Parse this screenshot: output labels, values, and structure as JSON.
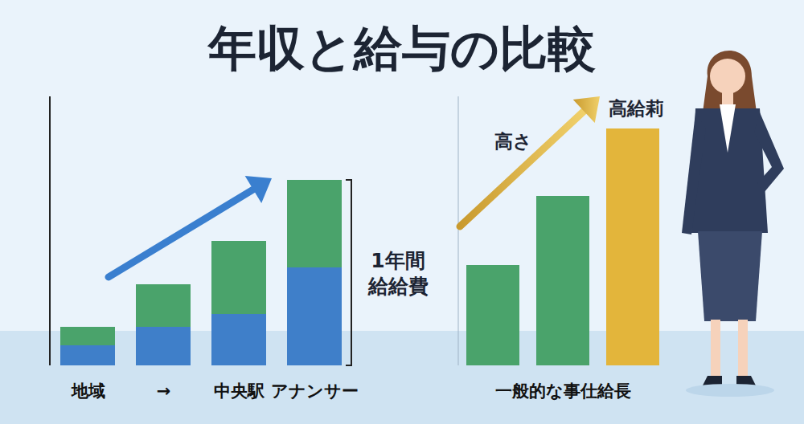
{
  "title": "年収と給与の比較",
  "chart_data": [
    {
      "type": "bar",
      "stacked": true,
      "categories": [
        "地域",
        "→",
        "中央駅",
        "アナンサー"
      ],
      "series": [
        {
          "color": "#3f7fc9",
          "values": [
            25,
            48,
            64,
            122
          ]
        },
        {
          "color": "#4aa36b",
          "values": [
            23,
            53,
            91,
            109
          ]
        }
      ],
      "annotations": [
        "1年間\n給給費"
      ],
      "ylim": [
        0,
        335
      ],
      "yticks": [],
      "grid": false,
      "tick_labels": "x"
    },
    {
      "type": "bar",
      "categories": [
        null,
        null,
        null
      ],
      "xlabel": "一般的な事仕給長",
      "values": [
        125,
        211,
        295
      ],
      "colors": [
        "#4aa36b",
        "#4aa36b",
        "#e3b53b"
      ],
      "annotations": [
        "高さ",
        "高給莉"
      ],
      "ylim": [
        0,
        335
      ],
      "yticks": [],
      "grid": false,
      "tick_labels": false
    }
  ]
}
